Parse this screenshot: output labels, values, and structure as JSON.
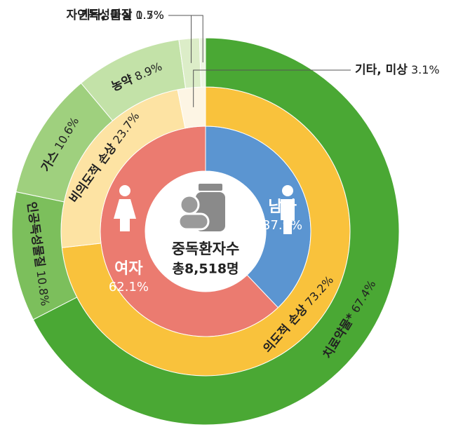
{
  "chart_data": {
    "type": "sunburst",
    "center_title": "중독환자수",
    "center_total": "총8,518명",
    "rings": [
      {
        "labels": [
          "남자",
          "여자"
        ],
        "values": [
          37.9,
          62.1
        ],
        "value_labels": [
          "37.9%",
          "62.1%"
        ],
        "colors": [
          "#5b95d1",
          "#eb7b70"
        ]
      },
      {
        "labels": [
          "의도적 손상",
          "비의도적 손상",
          "기타, 미상"
        ],
        "values": [
          73.2,
          23.7,
          3.1
        ],
        "value_labels": [
          "73.2%",
          "23.7%",
          "3.1%"
        ],
        "colors": [
          "#f9c23c",
          "#fde3a3",
          "#fdf5e4"
        ]
      },
      {
        "labels": [
          "치료약물*",
          "인공독성물질",
          "가스",
          "농약",
          "자연독성물질",
          "기타, 미상"
        ],
        "values": [
          67.4,
          10.8,
          10.6,
          8.9,
          1.7,
          0.5
        ],
        "value_labels": [
          "67.4%",
          "10.8%",
          "10.6%",
          "8.9%",
          "1.7%",
          "0.5%"
        ],
        "colors": [
          "#4aa834",
          "#7cbf5c",
          "#9fd07e",
          "#c3e2a8",
          "#dcedc8",
          "#eef6e4"
        ]
      }
    ]
  }
}
